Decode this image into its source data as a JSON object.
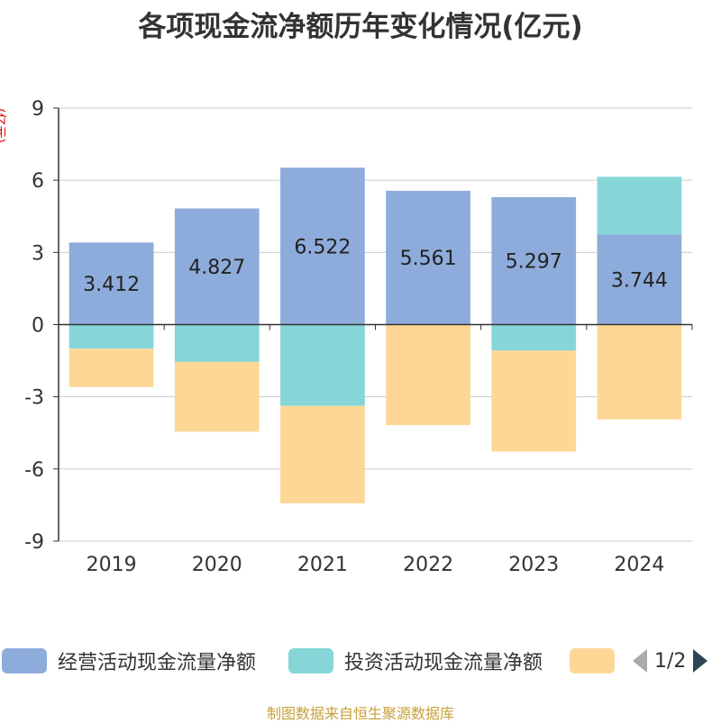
{
  "chart_data": {
    "type": "bar",
    "stacked": true,
    "title": "各项现金流净额历年变化情况(亿元)",
    "ylabel": "(亿元)",
    "ylim": [
      -9,
      9
    ],
    "yticks": [
      9,
      6,
      3,
      0,
      -3,
      -6,
      -9
    ],
    "grid": true,
    "legend_position": "bottom",
    "categories": [
      "2019",
      "2020",
      "2021",
      "2022",
      "2023",
      "2024"
    ],
    "series": [
      {
        "name": "经营活动现金流量净额",
        "color": "#8eacdb",
        "values": [
          3.412,
          4.827,
          6.522,
          5.561,
          5.297,
          3.744
        ],
        "labels": [
          "3.412",
          "4.827",
          "6.522",
          "5.561",
          "5.297",
          "3.744"
        ]
      },
      {
        "name": "投资活动现金流量净额",
        "color": "#86d6d7",
        "values": [
          -1.0,
          -1.55,
          -3.38,
          0,
          -1.08,
          2.4
        ]
      },
      {
        "name": "",
        "color": "#fed797",
        "values": [
          -1.6,
          -2.9,
          -4.05,
          -4.18,
          -4.2,
          -3.94
        ]
      }
    ]
  },
  "legend": {
    "items": [
      {
        "label": "经营活动现金流量净额",
        "color": "#8eacdb"
      },
      {
        "label": "投资活动现金流量净额",
        "color": "#86d6d7"
      },
      {
        "label": "",
        "color": "#fed797"
      }
    ],
    "page": "1/2"
  },
  "source": "制图数据来自恒生聚源数据库"
}
